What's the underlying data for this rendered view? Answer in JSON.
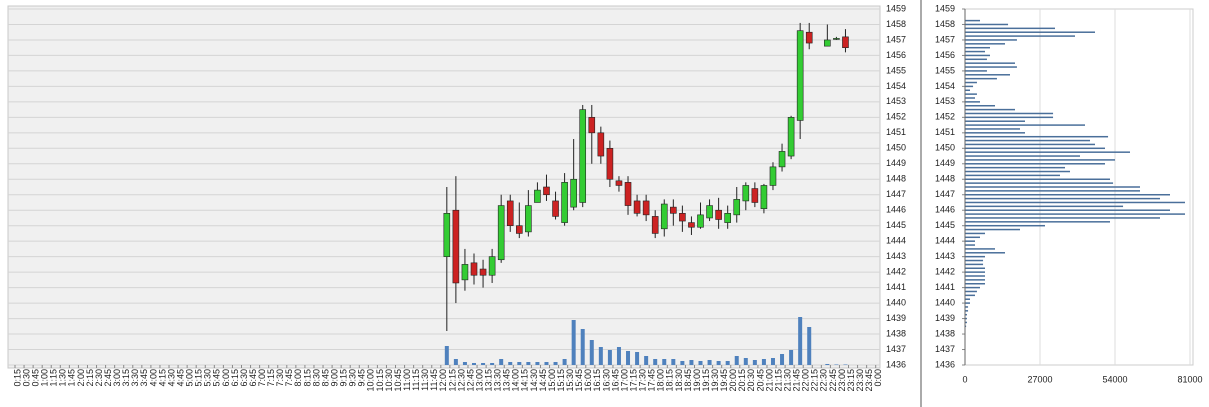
{
  "chart_data": [
    {
      "type": "candlestick",
      "categories": [
        "0:15",
        "0:30",
        "0:45",
        "1:00",
        "1:15",
        "1:30",
        "1:45",
        "2:00",
        "2:15",
        "2:30",
        "2:45",
        "3:00",
        "3:15",
        "3:30",
        "3:45",
        "4:00",
        "4:15",
        "4:30",
        "4:45",
        "5:00",
        "5:15",
        "5:30",
        "5:45",
        "6:00",
        "6:15",
        "6:30",
        "6:45",
        "7:00",
        "7:15",
        "7:30",
        "7:45",
        "8:00",
        "8:15",
        "8:30",
        "8:45",
        "9:00",
        "9:15",
        "9:30",
        "9:45",
        "10:00",
        "10:15",
        "10:30",
        "10:45",
        "11:00",
        "11:15",
        "11:30",
        "11:45",
        "12:00",
        "12:15",
        "12:30",
        "12:45",
        "13:00",
        "13:15",
        "13:30",
        "13:45",
        "14:00",
        "14:15",
        "14:30",
        "14:45",
        "15:00",
        "15:15",
        "15:30",
        "15:45",
        "16:00",
        "16:15",
        "16:30",
        "16:45",
        "17:00",
        "17:15",
        "17:30",
        "17:45",
        "18:00",
        "18:15",
        "18:30",
        "18:45",
        "19:00",
        "19:15",
        "19:30",
        "19:45",
        "20:00",
        "20:15",
        "20:30",
        "20:45",
        "21:00",
        "21:15",
        "21:30",
        "21:45",
        "22:00",
        "22:15",
        "22:30",
        "22:45",
        "23:00",
        "23:15",
        "23:30",
        "23:45",
        "0:00"
      ],
      "x": [
        "12:00",
        "12:15",
        "12:30",
        "12:45",
        "13:00",
        "13:15",
        "13:30",
        "13:45",
        "14:00",
        "14:15",
        "14:30",
        "14:45",
        "15:00",
        "15:15",
        "15:30",
        "15:45",
        "16:00",
        "16:15",
        "16:30",
        "16:45",
        "17:00",
        "17:15",
        "17:30",
        "17:45",
        "18:00",
        "18:15",
        "18:30",
        "18:45",
        "19:00",
        "19:15",
        "19:30",
        "19:45",
        "20:00",
        "20:15",
        "20:30",
        "20:45",
        "21:00",
        "21:15",
        "21:30",
        "21:45",
        "22:00",
        "22:30",
        "22:45",
        "23:00"
      ],
      "open": [
        1443,
        1446,
        1441.5,
        1442.6,
        1442.2,
        1441.8,
        1442.8,
        1446.6,
        1445,
        1444.6,
        1446.5,
        1447.5,
        1446.6,
        1445.2,
        1446.2,
        1446.5,
        1452,
        1451,
        1450,
        1447.9,
        1447.8,
        1446.6,
        1446.6,
        1445.6,
        1444.8,
        1446.2,
        1445.8,
        1445.2,
        1444.9,
        1445.5,
        1446,
        1445.2,
        1445.7,
        1446.6,
        1447.4,
        1446.1,
        1447.6,
        1448.8,
        1449.5,
        1451.8,
        1457.5,
        1456.6,
        1457.1,
        1457.2
      ],
      "high": [
        1447.5,
        1448.2,
        1443.5,
        1443.2,
        1442.8,
        1443.5,
        1447,
        1447,
        1446.5,
        1447.3,
        1447.8,
        1448.3,
        1447.2,
        1448.4,
        1450.6,
        1452.8,
        1452.8,
        1451.4,
        1450.5,
        1448.2,
        1448.2,
        1447,
        1447,
        1446,
        1446.7,
        1446.7,
        1446.3,
        1445.6,
        1446.5,
        1446.7,
        1446.8,
        1446.3,
        1447.5,
        1447.8,
        1447.8,
        1447.7,
        1449.1,
        1450.3,
        1452.1,
        1458.1,
        1458.1,
        1458,
        1457.2,
        1457.7
      ],
      "low": [
        1438.2,
        1440,
        1440.8,
        1441.2,
        1441,
        1441.3,
        1442.6,
        1444.6,
        1444.2,
        1444.3,
        1446.5,
        1446.6,
        1445.4,
        1445,
        1446,
        1446.2,
        1449,
        1449,
        1447.5,
        1447.2,
        1445.7,
        1445.6,
        1445.3,
        1444.2,
        1444.3,
        1445,
        1444.6,
        1444.4,
        1444.8,
        1445.3,
        1444.8,
        1444.8,
        1445.2,
        1446,
        1446.2,
        1445.8,
        1447.3,
        1448.5,
        1449.3,
        1450.6,
        1456.4,
        1456.6,
        1457,
        1456.2
      ],
      "close": [
        1445.8,
        1441.3,
        1442.5,
        1441.8,
        1441.8,
        1443,
        1446.3,
        1445,
        1444.5,
        1446.3,
        1447.3,
        1447,
        1445.6,
        1447.8,
        1448,
        1452.5,
        1451,
        1449.5,
        1448,
        1447.6,
        1446.3,
        1445.8,
        1445.7,
        1444.5,
        1446.4,
        1445.8,
        1445.3,
        1444.9,
        1445.7,
        1446.3,
        1445.4,
        1445.8,
        1446.7,
        1447.6,
        1446.5,
        1447.6,
        1448.8,
        1449.8,
        1452,
        1457.6,
        1456.8,
        1457,
        1457.1,
        1456.5
      ],
      "volume": [
        19,
        6,
        3,
        2,
        2,
        2,
        6,
        3,
        3,
        3,
        3,
        3,
        3,
        6,
        45,
        36,
        25,
        18,
        15,
        18,
        14,
        13,
        9,
        6,
        6,
        6,
        4,
        5,
        4,
        5,
        4,
        4,
        9,
        7,
        5,
        6,
        7,
        11,
        15,
        48,
        38,
        1,
        0.5,
        0.5
      ],
      "up_color": "#33cc33",
      "down_color": "#cc2222",
      "volume_color": "#4f81bd",
      "ylim": [
        1436,
        1459
      ],
      "yticks": [
        1436,
        1437,
        1438,
        1439,
        1440,
        1441,
        1442,
        1443,
        1444,
        1445,
        1446,
        1447,
        1448,
        1449,
        1450,
        1451,
        1452,
        1453,
        1454,
        1455,
        1456,
        1457,
        1458,
        1459
      ],
      "grid": true
    },
    {
      "type": "volume-profile",
      "y": [
        1458.25,
        1458,
        1457.75,
        1457.5,
        1457.25,
        1457,
        1456.75,
        1456.5,
        1456.25,
        1456,
        1455.75,
        1455.5,
        1455.25,
        1455,
        1454.75,
        1454.5,
        1454.25,
        1454,
        1453.75,
        1453.5,
        1453.25,
        1453,
        1452.75,
        1452.5,
        1452.25,
        1452,
        1451.75,
        1451.5,
        1451.25,
        1451,
        1450.75,
        1450.5,
        1450.25,
        1450,
        1449.75,
        1449.5,
        1449.25,
        1449,
        1448.75,
        1448.5,
        1448.25,
        1448,
        1447.75,
        1447.5,
        1447.25,
        1447,
        1446.75,
        1446.5,
        1446.25,
        1446,
        1445.75,
        1445.5,
        1445.25,
        1445,
        1444.75,
        1444.5,
        1444.25,
        1444,
        1443.75,
        1443.5,
        1443.25,
        1443,
        1442.75,
        1442.5,
        1442.25,
        1442,
        1441.75,
        1441.5,
        1441.25,
        1441,
        1440.75,
        1440.5,
        1440.25,
        1440,
        1439.75,
        1439.5,
        1439.25,
        1439,
        1438.75,
        1438.5
      ],
      "values": [
        5400,
        15500,
        32400,
        46800,
        39600,
        18700,
        14400,
        9000,
        7200,
        9000,
        7900,
        18000,
        18700,
        7900,
        16200,
        11500,
        4300,
        2900,
        1800,
        4300,
        3600,
        5400,
        10800,
        18000,
        31700,
        31700,
        21600,
        43200,
        19800,
        21600,
        51500,
        45000,
        46800,
        50400,
        59400,
        41400,
        54000,
        50400,
        36000,
        37800,
        34200,
        52200,
        53300,
        63000,
        63000,
        73800,
        70200,
        79200,
        56900,
        73800,
        79200,
        70200,
        52200,
        28800,
        19800,
        7200,
        5400,
        3600,
        3600,
        10800,
        14400,
        7200,
        6500,
        6500,
        7200,
        7200,
        7200,
        7200,
        7200,
        5400,
        4300,
        3600,
        1800,
        1800,
        1100,
        1100,
        700,
        700,
        700,
        400
      ],
      "color": "#4a6f9a",
      "ylim": [
        1436,
        1459
      ],
      "yticks": [
        1436,
        1437,
        1438,
        1439,
        1440,
        1441,
        1442,
        1443,
        1444,
        1445,
        1446,
        1447,
        1448,
        1449,
        1450,
        1451,
        1452,
        1453,
        1454,
        1455,
        1456,
        1457,
        1458,
        1459
      ],
      "xlim": [
        0,
        81000
      ],
      "xticks": [
        0,
        27000,
        54000,
        81000
      ],
      "grid": true
    }
  ]
}
